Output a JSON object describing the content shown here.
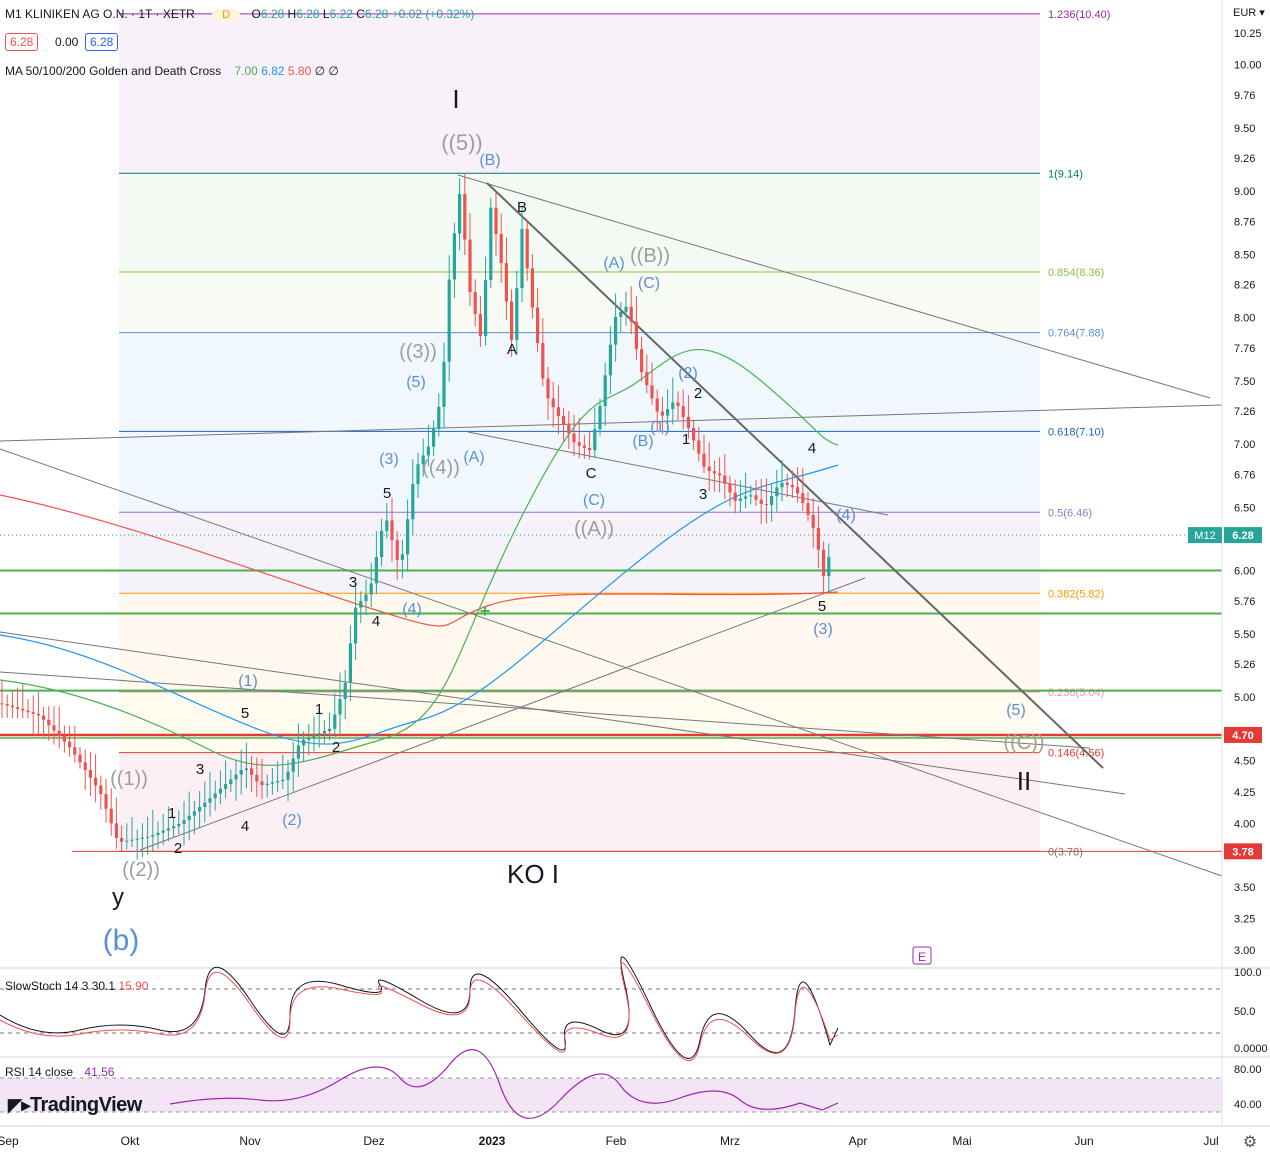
{
  "symbol": {
    "name": "M1 KLINIKEN AG O.N. · 1T · XETR",
    "ohlc": {
      "o_label": "O",
      "o": "6.28",
      "h_label": "H",
      "h": "6.28",
      "l_label": "L",
      "l": "6.22",
      "c_label": "C",
      "c": "6.28",
      "chg": "+0.02 (+0.32%)"
    },
    "pills": [
      "6.28",
      "0.00",
      "6.28"
    ],
    "delay_badge": "D"
  },
  "ma_legend": {
    "label": "MA 50/100/200 Golden and Death Cross",
    "v50": "7.00",
    "v100": "6.82",
    "v200": "5.80",
    "icons": "∅ ∅"
  },
  "colors": {
    "up": "#26a69a",
    "down": "#ef5350",
    "ma50": "#4caf50",
    "ma100": "#2196f3",
    "ma200": "#ef5350",
    "wave_blue": "#5b8fd6",
    "wave_gray": "#9e9e9e",
    "fib": "#9c27b0"
  },
  "price_axis": {
    "currency": "EUR",
    "ticks": [
      "10.25",
      "10.00",
      "9.76",
      "9.50",
      "9.26",
      "9.00",
      "8.76",
      "8.50",
      "8.26",
      "8.00",
      "7.76",
      "7.50",
      "7.26",
      "7.00",
      "6.76",
      "6.50",
      "6.00",
      "5.76",
      "5.50",
      "5.26",
      "5.00",
      "4.50",
      "4.25",
      "4.00",
      "3.50",
      "3.25",
      "3.00"
    ],
    "current_label": "M12",
    "current": "6.28",
    "marker_470": "4.70",
    "marker_378": "3.78"
  },
  "time_axis": {
    "labels": [
      "Sep",
      "Okt",
      "Nov",
      "Dez",
      "2023",
      "Feb",
      "Mrz",
      "Apr",
      "Mai",
      "Jun",
      "Jul"
    ]
  },
  "fib_levels": [
    {
      "label": "1.236(10.40)",
      "value": 10.4,
      "color": "#9c27b0"
    },
    {
      "label": "1(9.14)",
      "value": 9.14,
      "color": "#00796b"
    },
    {
      "label": "0.854(8.36)",
      "value": 8.36,
      "color": "#8bc34a"
    },
    {
      "label": "0.764(7.88)",
      "value": 7.88,
      "color": "#5b8fd6"
    },
    {
      "label": "0.618(7.10)",
      "value": 7.1,
      "color": "#1565c0"
    },
    {
      "label": "0.5(6.46)",
      "value": 6.46,
      "color": "#9575cd"
    },
    {
      "label": "0.382(5.82)",
      "value": 5.82,
      "color": "#ff9800"
    },
    {
      "label": "0.236(5.04)",
      "value": 5.04,
      "color": "#f48fb1"
    },
    {
      "label": "0.146(4.56)",
      "value": 4.56,
      "color": "#e53935"
    },
    {
      "label": "0(3.78)",
      "value": 3.78,
      "color": "#757575"
    }
  ],
  "wave_labels": {
    "I": "I",
    "II": "II",
    "y": "y",
    "b": "(b)",
    "ko": "KO I",
    "w5_top": "((5))",
    "w3": "((3))",
    "w4": "((4))",
    "w1": "((1))",
    "w2": "((2))",
    "wA": "((A))",
    "wB": "((B))",
    "wC": "((C))",
    "B_par": "(B)",
    "A_par": "(A)",
    "C_par": "(C)",
    "one_par": "(1)",
    "two_par": "(2)",
    "three_par": "(3)",
    "four_par": "(4)",
    "five_par": "(5)",
    "A": "A",
    "B": "B",
    "C": "C",
    "n1": "1",
    "n2": "2",
    "n3": "3",
    "n4": "4",
    "n5": "5",
    "E": "E"
  },
  "stoch": {
    "label": "SlowStoch",
    "params": "14 3",
    "k": "30.1",
    "d": "15.90",
    "ticks": [
      "100.0",
      "50.0",
      "0.0000"
    ]
  },
  "rsi": {
    "label": "RSI",
    "params": "14 close",
    "value": "41.56",
    "ticks": [
      "80.00",
      "40.00"
    ]
  },
  "branding": "TradingView",
  "chart_data": {
    "type": "candlestick",
    "x": [
      "2022-09-26",
      "2022-10-03",
      "2022-10-10",
      "2022-10-17",
      "2022-10-24",
      "2022-10-31",
      "2022-11-07",
      "2022-11-14",
      "2022-11-21",
      "2022-11-28",
      "2022-12-05",
      "2022-12-12",
      "2022-12-19",
      "2022-12-26",
      "2023-01-02",
      "2023-01-09",
      "2023-01-16",
      "2023-01-23",
      "2023-01-30",
      "2023-02-06",
      "2023-02-13",
      "2023-02-20",
      "2023-02-27",
      "2023-03-06",
      "2023-03-13",
      "2023-03-20",
      "2023-03-24"
    ],
    "close": [
      4.75,
      4.5,
      4.2,
      3.9,
      4.1,
      4.45,
      4.7,
      5.0,
      5.7,
      6.2,
      7.1,
      8.5,
      7.8,
      8.7,
      8.1,
      7.4,
      7.05,
      7.2,
      8.0,
      7.3,
      7.2,
      6.8,
      6.6,
      6.65,
      6.45,
      5.9,
      6.28
    ],
    "ylim": [
      2.9,
      10.45
    ],
    "current_price": 6.28,
    "moving_averages": {
      "ma50": 7.0,
      "ma100": 6.82,
      "ma200": 5.8
    },
    "stochastic": {
      "k": 30.1,
      "d": 15.9
    },
    "rsi": 41.56
  }
}
